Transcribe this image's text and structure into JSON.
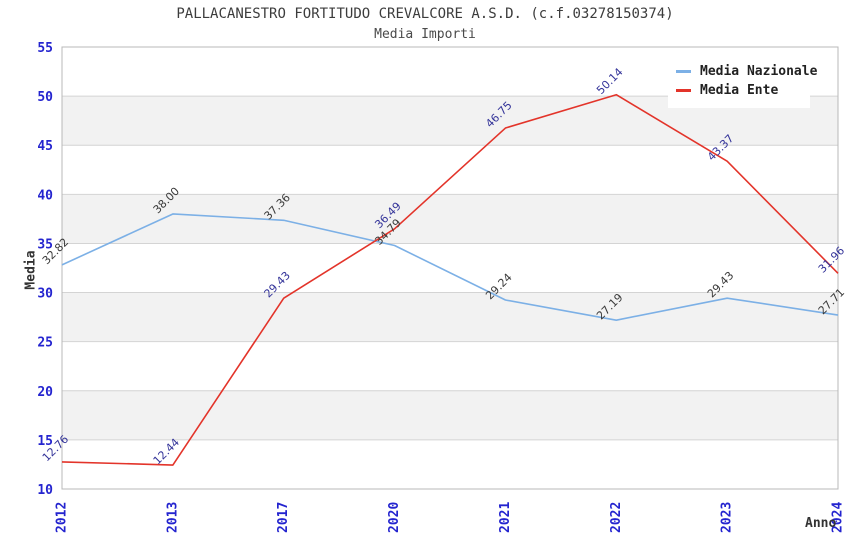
{
  "chart_data": {
    "type": "line",
    "title": "PALLACANESTRO FORTITUDO CREVALCORE A.S.D. (c.f.03278150374)",
    "subtitle": "Media Importi",
    "xlabel": "Anno",
    "ylabel": "Media",
    "categories": [
      "2012",
      "2013",
      "2017",
      "2020",
      "2021",
      "2022",
      "2023",
      "2024"
    ],
    "series": [
      {
        "name": "Media Nazionale",
        "color": "#7cb0e6",
        "label_color": "#3a3a3a",
        "values": [
          32.82,
          38.0,
          37.36,
          34.79,
          29.24,
          27.19,
          29.43,
          27.71
        ],
        "point_labels": [
          "32.82",
          "38.00",
          "37.36",
          "34.79",
          "29.24",
          "27.19",
          "29.43",
          "27.71"
        ]
      },
      {
        "name": "Media Ente",
        "color": "#e3342a",
        "label_color": "#333399",
        "values": [
          12.76,
          12.44,
          29.43,
          36.49,
          46.75,
          50.14,
          43.37,
          31.96
        ],
        "point_labels": [
          "12.76",
          "12.44",
          "29.43",
          "36.49",
          "46.75",
          "50.14",
          "43.37",
          "31.96"
        ]
      }
    ],
    "ylim": [
      10,
      55
    ],
    "ytick_step": 5,
    "ytick_labels": [
      "10",
      "15",
      "20",
      "25",
      "30",
      "35",
      "40",
      "45",
      "50",
      "55"
    ],
    "grid": "horizontal",
    "legend_position": "top-right",
    "colors": {
      "tick_label": "#2424cf",
      "grid_line": "#d4d4d4",
      "band_fill": "#f2f2f2",
      "plot_border": "#b8b8b8"
    }
  }
}
